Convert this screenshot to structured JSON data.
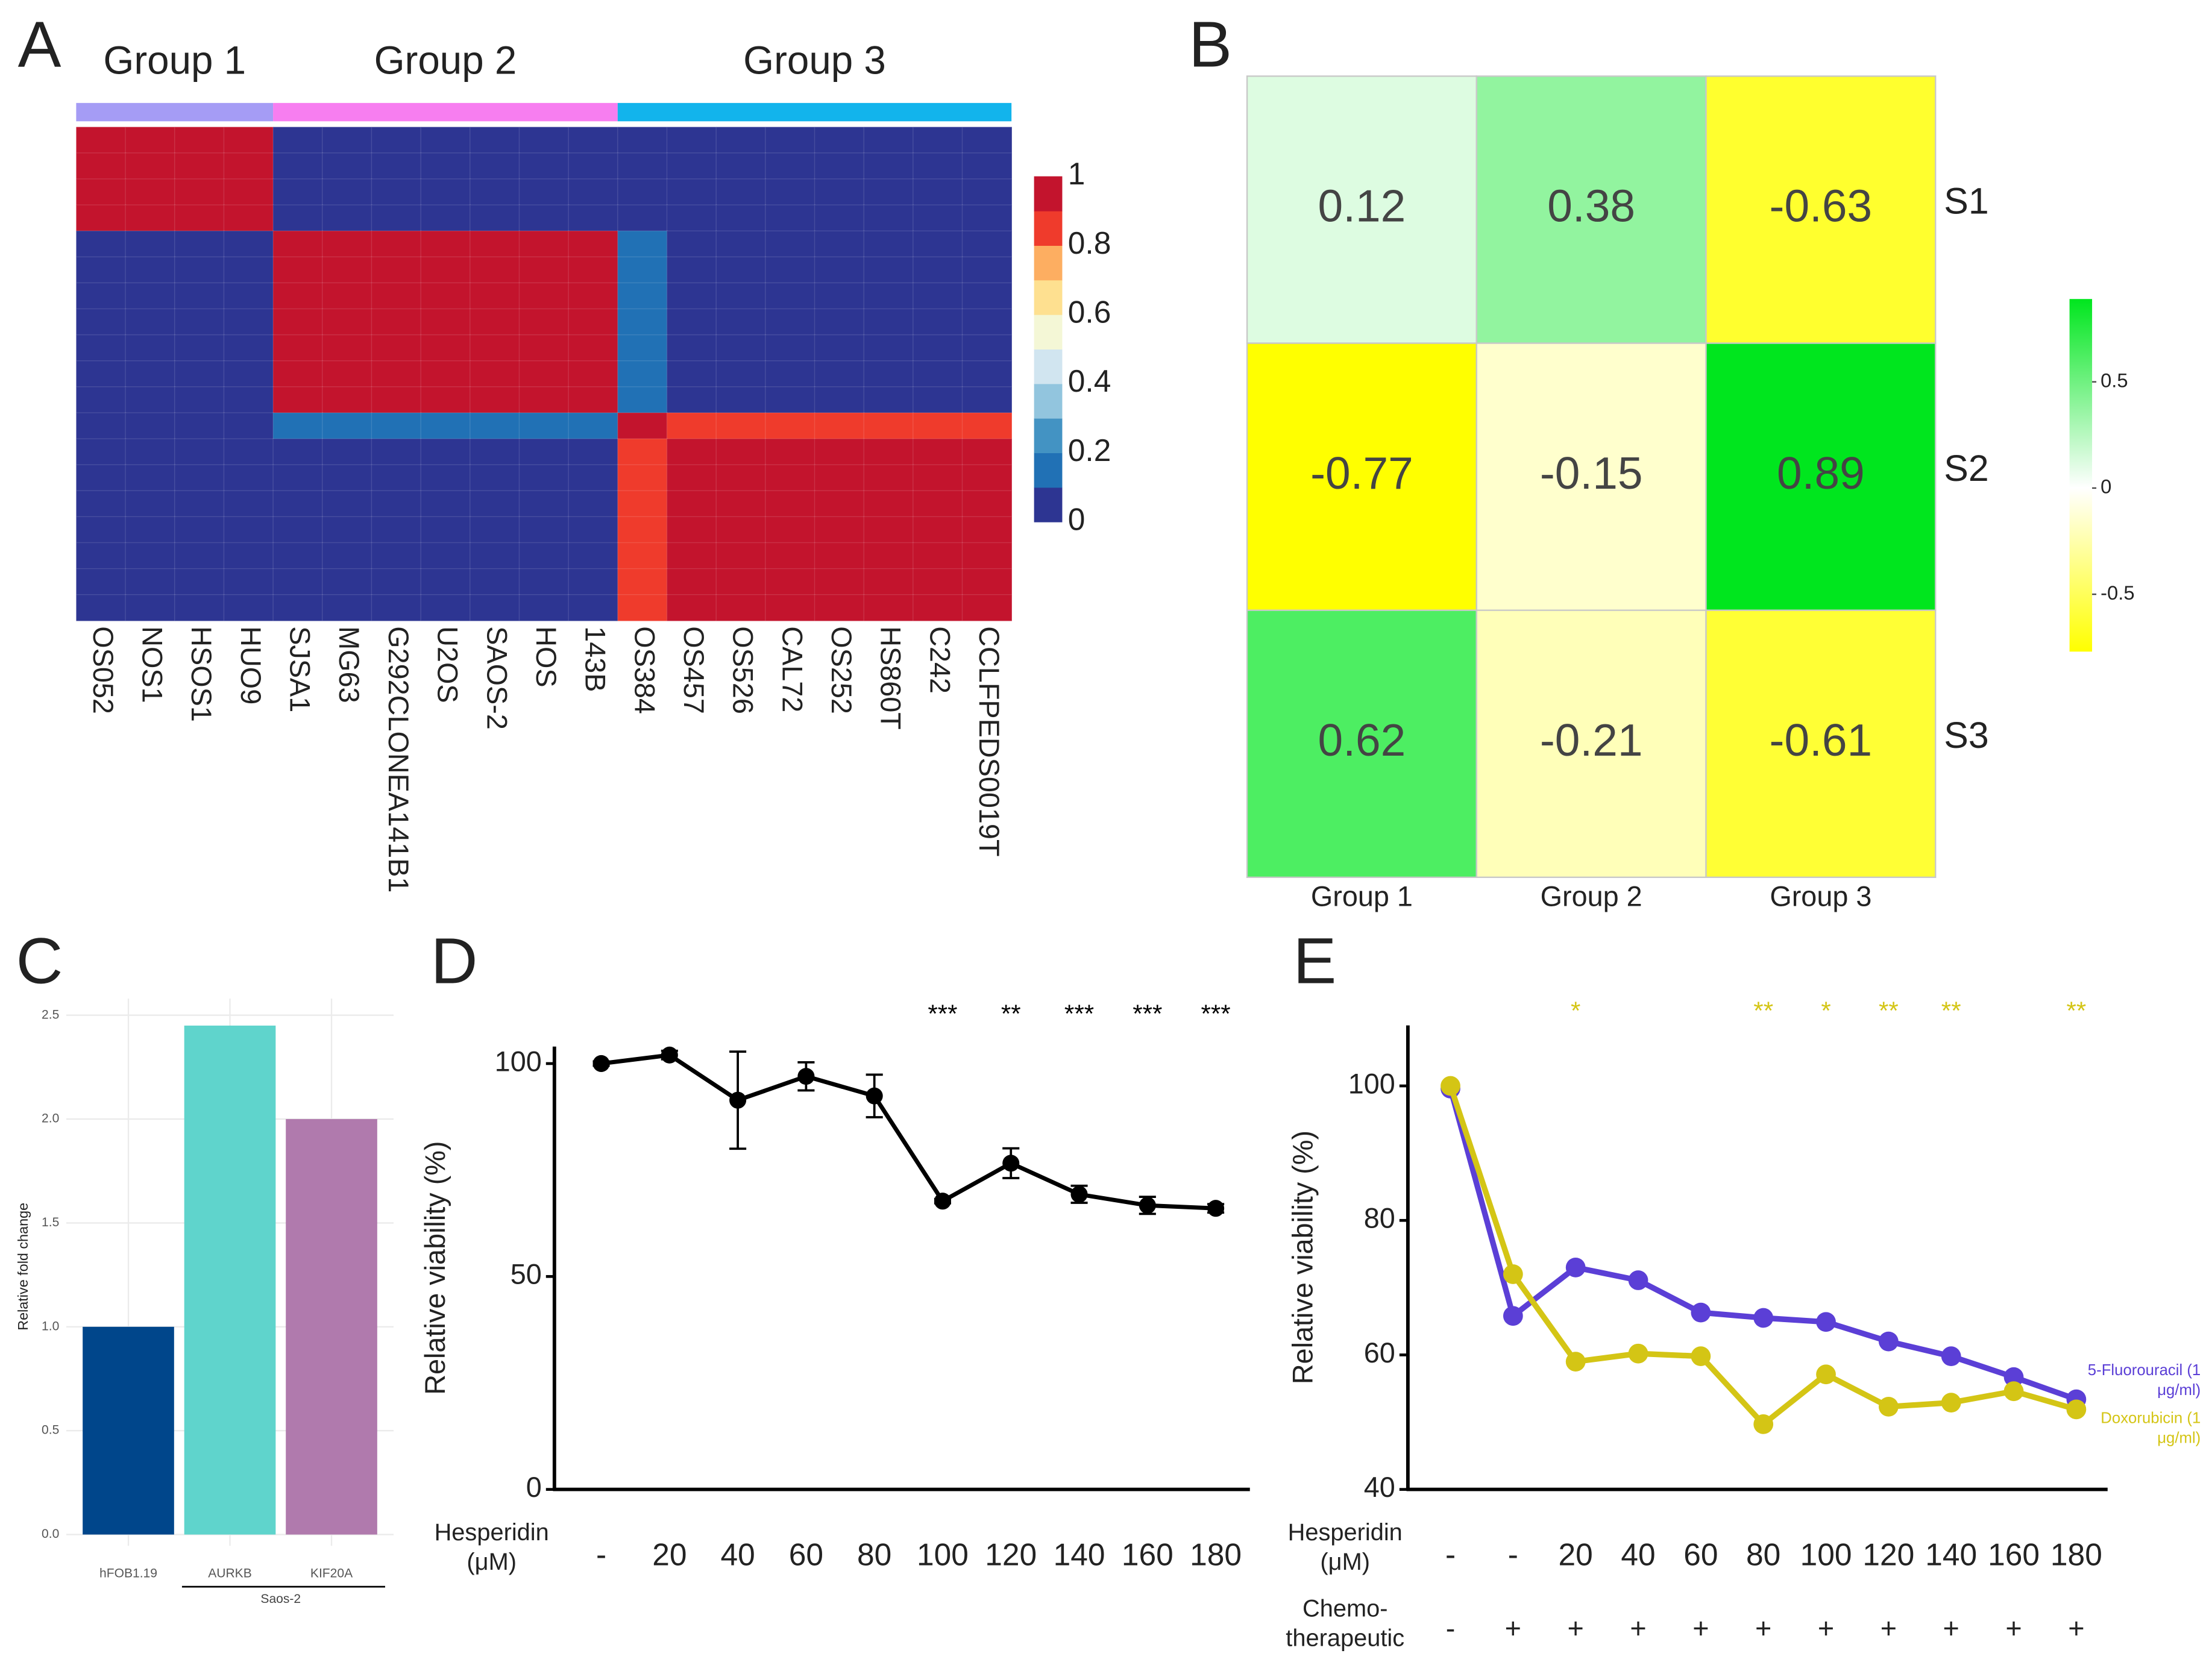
{
  "chart_data": [
    {
      "type": "heatmap",
      "panel": "A",
      "groups": [
        {
          "name": "Group 1",
          "color": "#a59cf5",
          "categories": [
            "OS052",
            "NOS1",
            "HSOS1",
            "HUO9"
          ]
        },
        {
          "name": "Group 2",
          "color": "#f77ef0",
          "categories": [
            "SJSA1",
            "MG63",
            "G292CLONEA141B1",
            "U2OS",
            "SAOS-2",
            "HOS",
            "143B"
          ]
        },
        {
          "name": "Group 3",
          "color": "#12b4ec",
          "categories": [
            "OS384",
            "OS457",
            "OS526",
            "CAL72",
            "OS252",
            "HS860T",
            "C242",
            "CCLFPEDS0019T"
          ]
        }
      ],
      "z": [
        [
          1,
          1,
          1,
          1,
          0,
          0,
          0,
          0,
          0,
          0,
          0,
          0,
          0,
          0,
          0,
          0,
          0,
          0,
          0
        ],
        [
          1,
          1,
          1,
          1,
          0,
          0,
          0,
          0,
          0,
          0,
          0,
          0,
          0,
          0,
          0,
          0,
          0,
          0,
          0
        ],
        [
          1,
          1,
          1,
          1,
          0,
          0,
          0,
          0,
          0,
          0,
          0,
          0,
          0,
          0,
          0,
          0,
          0,
          0,
          0
        ],
        [
          1,
          1,
          1,
          1,
          0,
          0,
          0,
          0,
          0,
          0,
          0,
          0,
          0,
          0,
          0,
          0,
          0,
          0,
          0
        ],
        [
          0,
          0,
          0,
          0,
          1,
          1,
          1,
          1,
          1,
          1,
          1,
          0.15,
          0,
          0,
          0,
          0,
          0,
          0,
          0
        ],
        [
          0,
          0,
          0,
          0,
          1,
          1,
          1,
          1,
          1,
          1,
          1,
          0.15,
          0,
          0,
          0,
          0,
          0,
          0,
          0
        ],
        [
          0,
          0,
          0,
          0,
          1,
          1,
          1,
          1,
          1,
          1,
          1,
          0.15,
          0,
          0,
          0,
          0,
          0,
          0,
          0
        ],
        [
          0,
          0,
          0,
          0,
          1,
          1,
          1,
          1,
          1,
          1,
          1,
          0.15,
          0,
          0,
          0,
          0,
          0,
          0,
          0
        ],
        [
          0,
          0,
          0,
          0,
          1,
          1,
          1,
          1,
          1,
          1,
          1,
          0.15,
          0,
          0,
          0,
          0,
          0,
          0,
          0
        ],
        [
          0,
          0,
          0,
          0,
          1,
          1,
          1,
          1,
          1,
          1,
          1,
          0.15,
          0,
          0,
          0,
          0,
          0,
          0,
          0
        ],
        [
          0,
          0,
          0,
          0,
          1,
          1,
          1,
          1,
          1,
          1,
          1,
          0.15,
          0,
          0,
          0,
          0,
          0,
          0,
          0
        ],
        [
          0,
          0,
          0,
          0,
          0.15,
          0.15,
          0.15,
          0.15,
          0.15,
          0.15,
          0.15,
          1,
          0.85,
          0.85,
          0.85,
          0.85,
          0.85,
          0.85,
          0.85
        ],
        [
          0,
          0,
          0,
          0,
          0,
          0,
          0,
          0,
          0,
          0,
          0,
          0.85,
          1,
          1,
          1,
          1,
          1,
          1,
          1
        ],
        [
          0,
          0,
          0,
          0,
          0,
          0,
          0,
          0,
          0,
          0,
          0,
          0.85,
          1,
          1,
          1,
          1,
          1,
          1,
          1
        ],
        [
          0,
          0,
          0,
          0,
          0,
          0,
          0,
          0,
          0,
          0,
          0,
          0.85,
          1,
          1,
          1,
          1,
          1,
          1,
          1
        ],
        [
          0,
          0,
          0,
          0,
          0,
          0,
          0,
          0,
          0,
          0,
          0,
          0.85,
          1,
          1,
          1,
          1,
          1,
          1,
          1
        ],
        [
          0,
          0,
          0,
          0,
          0,
          0,
          0,
          0,
          0,
          0,
          0,
          0.85,
          1,
          1,
          1,
          1,
          1,
          1,
          1
        ],
        [
          0,
          0,
          0,
          0,
          0,
          0,
          0,
          0,
          0,
          0,
          0,
          0.85,
          1,
          1,
          1,
          1,
          1,
          1,
          1
        ],
        [
          0,
          0,
          0,
          0,
          0,
          0,
          0,
          0,
          0,
          0,
          0,
          0.85,
          1,
          1,
          1,
          1,
          1,
          1,
          1
        ]
      ],
      "colors": [
        "#2d3592",
        "#2171b5",
        "#4393c3",
        "#92c5de",
        "#d1e5f0",
        "#f4f7d6",
        "#fee090",
        "#fdae61",
        "#ef3b2c",
        "#c3142d"
      ],
      "zlim": [
        0,
        1
      ],
      "zticks": [
        0,
        0.2,
        0.4,
        0.6,
        0.8,
        1
      ]
    },
    {
      "type": "heatmap",
      "panel": "B",
      "categories": [
        "Group 1",
        "Group 2",
        "Group 3"
      ],
      "rows": [
        "S1",
        "S2",
        "S3"
      ],
      "z": [
        [
          0.12,
          0.38,
          -0.63
        ],
        [
          -0.77,
          -0.15,
          0.89
        ],
        [
          0.62,
          -0.21,
          -0.61
        ]
      ],
      "colors": [
        "#ffff00",
        "#ffffff",
        "#00e61e"
      ],
      "zlim": [
        -0.77,
        0.89
      ],
      "zticks": [
        -0.5,
        0,
        0.5
      ]
    },
    {
      "type": "bar",
      "panel": "C",
      "categories": [
        "hFOB1.19",
        "AURKB",
        "KIF20A"
      ],
      "values": [
        1.0,
        2.45,
        2.0
      ],
      "colors": [
        "#00468b",
        "#5fd4cc",
        "#b07aad"
      ],
      "ylabel": "Relative fold change",
      "group_label": "Saos-2",
      "ylim": [
        0,
        2.58
      ],
      "yticks": [
        {
          "value": 0,
          "label": "0.0"
        },
        0.5,
        {
          "value": 1,
          "label": "1.0"
        },
        1.5,
        {
          "value": 2,
          "label": "2.0"
        },
        2.5
      ],
      "grid": true
    },
    {
      "type": "line",
      "panel": "D",
      "x": [
        "-",
        "20",
        "40",
        "60",
        "80",
        "100",
        "120",
        "140",
        "160",
        "180"
      ],
      "xlabel": "Hesperidin (μM)",
      "ylabel": "Relative viability (%)",
      "series": [
        {
          "color": "#000000",
          "values": [
            100,
            102,
            91.4,
            97,
            92.4,
            67.7,
            76.6,
            69.3,
            66.7,
            66
          ],
          "errors": [
            0.5,
            1,
            11.4,
            3.3,
            5,
            0.5,
            3.5,
            2,
            2,
            1
          ]
        }
      ],
      "annotations": [
        null,
        null,
        null,
        null,
        null,
        "***",
        "**",
        "***",
        "***",
        "***"
      ],
      "annotation_color": "#000000",
      "ylim": [
        0,
        104
      ],
      "yticks": [
        0,
        50,
        100
      ]
    },
    {
      "type": "line",
      "panel": "E",
      "x": [
        "-",
        "-",
        "20",
        "40",
        "60",
        "80",
        "100",
        "120",
        "140",
        "160",
        "180"
      ],
      "x2": [
        "-",
        "+",
        "+",
        "+",
        "+",
        "+",
        "+",
        "+",
        "+",
        "+",
        "+"
      ],
      "xlabel": "Hesperidin (μM)",
      "x2label": "Chemo-therapeutic",
      "ylabel": "Relative viability (%)",
      "series": [
        {
          "name": "5-Fluorouracil (1 μg/ml)",
          "color": "#5b3fd6",
          "values": [
            99.6,
            65.8,
            73,
            71.1,
            66.3,
            65.5,
            64.9,
            62,
            59.8,
            56.7,
            53.4
          ]
        },
        {
          "name": "Doxorubicin (1 μg/ml)",
          "color": "#d4c515",
          "values": [
            100,
            72,
            59,
            60.2,
            59.8,
            49.7,
            57.1,
            52.3,
            52.9,
            54.6,
            51.9
          ]
        }
      ],
      "annotations": [
        null,
        null,
        "*",
        null,
        null,
        "**",
        "*",
        "**",
        "**",
        null,
        "**"
      ],
      "annotation_color": "#d4c515",
      "ylim": [
        40,
        109
      ],
      "yticks": [
        40,
        60,
        80,
        100
      ]
    }
  ]
}
